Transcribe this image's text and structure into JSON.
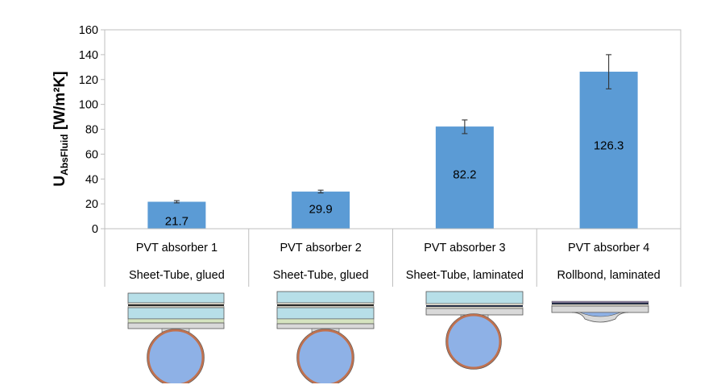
{
  "chart_data": {
    "type": "bar",
    "title": "",
    "xlabel": "",
    "ylabel": "U_AbsFluid [W/m²K]",
    "ylabel_main": "U",
    "ylabel_sub": "AbsFluid",
    "ylabel_unit": " [W/m²K]",
    "ylim": [
      0,
      160
    ],
    "yticks": [
      0,
      20,
      40,
      60,
      80,
      100,
      120,
      140,
      160
    ],
    "grid": false,
    "legend": null,
    "categories": [
      "PVT absorber 1",
      "PVT absorber 2",
      "PVT absorber 3",
      "PVT absorber 4"
    ],
    "category_sublabels": [
      "Sheet-Tube, glued",
      "Sheet-Tube, glued",
      "Sheet-Tube, laminated",
      "Rollbond, laminated"
    ],
    "values": [
      21.7,
      29.9,
      82.2,
      126.3
    ],
    "data_labels": [
      "21.7",
      "29.9",
      "82.2",
      "126.3"
    ],
    "error_bars": [
      {
        "low": 20.8,
        "high": 22.6
      },
      {
        "low": 28.8,
        "high": 31.0
      },
      {
        "low": 76.5,
        "high": 87.5
      },
      {
        "low": 112.5,
        "high": 140.0
      }
    ],
    "bar_color": "#5B9BD5",
    "diagrams": [
      {
        "name": "sheet-tube-glued-1",
        "layers": [
          "glass",
          "encapsulant",
          "pv-cell",
          "glass",
          "glue",
          "absorber-sheet"
        ],
        "tube": "round"
      },
      {
        "name": "sheet-tube-glued-2",
        "layers": [
          "glass",
          "encapsulant",
          "pv-cell",
          "glass",
          "glue",
          "absorber-sheet"
        ],
        "tube": "round"
      },
      {
        "name": "sheet-tube-laminated",
        "layers": [
          "glass",
          "encapsulant",
          "pv-cell",
          "absorber-sheet"
        ],
        "tube": "round"
      },
      {
        "name": "rollbond-laminated",
        "layers": [
          "encapsulant",
          "pv-cell",
          "absorber-sheet"
        ],
        "tube": "rollbond-channel"
      }
    ]
  }
}
